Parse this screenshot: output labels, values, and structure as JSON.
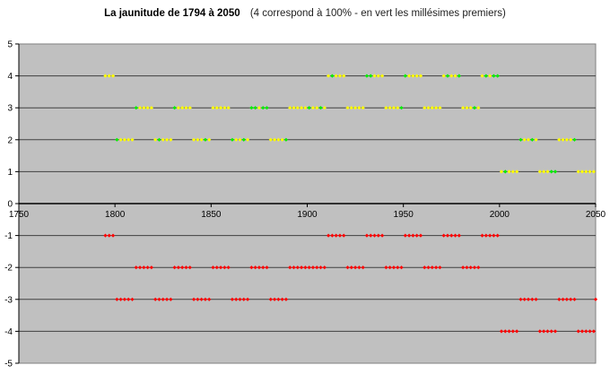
{
  "chart_data": {
    "type": "scatter",
    "title": "La jaunitude de 1794 à 2050",
    "subtitle": "(4 correspond à 100% - en vert les millésimes premiers)",
    "xlim": [
      1750,
      2050
    ],
    "ylim": [
      -5,
      5
    ],
    "x_ticks": [
      1750,
      1800,
      1850,
      1900,
      1950,
      2000,
      2050
    ],
    "y_ticks": [
      5,
      4,
      3,
      2,
      1,
      0,
      -1,
      -2,
      -3,
      -4,
      -5
    ],
    "grid": "horizontal",
    "plot_background": "#c0c0c0",
    "colors": {
      "normal": "#ffff00",
      "prime": "#00ee00",
      "mirror": "#ff0000"
    },
    "year_step": 2,
    "upper_series": [
      {
        "start": 1795,
        "end": 1799,
        "value": 4
      },
      {
        "start": 1801,
        "end": 1809,
        "value": 2
      },
      {
        "start": 1811,
        "end": 1819,
        "value": 3
      },
      {
        "start": 1821,
        "end": 1829,
        "value": 2
      },
      {
        "start": 1831,
        "end": 1839,
        "value": 3
      },
      {
        "start": 1841,
        "end": 1849,
        "value": 2
      },
      {
        "start": 1851,
        "end": 1859,
        "value": 3
      },
      {
        "start": 1861,
        "end": 1869,
        "value": 2
      },
      {
        "start": 1871,
        "end": 1879,
        "value": 3
      },
      {
        "start": 1881,
        "end": 1889,
        "value": 2
      },
      {
        "start": 1891,
        "end": 1899,
        "value": 3
      },
      {
        "start": 1901,
        "end": 1909,
        "value": 3
      },
      {
        "start": 1911,
        "end": 1919,
        "value": 4
      },
      {
        "start": 1921,
        "end": 1929,
        "value": 3
      },
      {
        "start": 1931,
        "end": 1939,
        "value": 4
      },
      {
        "start": 1941,
        "end": 1949,
        "value": 3
      },
      {
        "start": 1951,
        "end": 1959,
        "value": 4
      },
      {
        "start": 1961,
        "end": 1969,
        "value": 3
      },
      {
        "start": 1971,
        "end": 1979,
        "value": 4
      },
      {
        "start": 1981,
        "end": 1989,
        "value": 3
      },
      {
        "start": 1991,
        "end": 1999,
        "value": 4
      },
      {
        "start": 2001,
        "end": 2009,
        "value": 1
      },
      {
        "start": 2011,
        "end": 2019,
        "value": 2
      },
      {
        "start": 2021,
        "end": 2029,
        "value": 1
      },
      {
        "start": 2031,
        "end": 2039,
        "value": 2
      },
      {
        "start": 2041,
        "end": 2049,
        "value": 1
      }
    ],
    "prime_years": [
      1801,
      1811,
      1823,
      1831,
      1847,
      1861,
      1867,
      1871,
      1873,
      1877,
      1879,
      1889,
      1901,
      1907,
      1913,
      1931,
      1933,
      1949,
      1951,
      1973,
      1979,
      1987,
      1993,
      1997,
      1999,
      2003,
      2011,
      2017,
      2027,
      2029,
      2039
    ],
    "lower_series": [
      {
        "start": 1795,
        "end": 1799,
        "value": -1
      },
      {
        "start": 1801,
        "end": 1809,
        "value": -3
      },
      {
        "start": 1811,
        "end": 1819,
        "value": -2
      },
      {
        "start": 1821,
        "end": 1829,
        "value": -3
      },
      {
        "start": 1831,
        "end": 1839,
        "value": -2
      },
      {
        "start": 1841,
        "end": 1849,
        "value": -3
      },
      {
        "start": 1851,
        "end": 1859,
        "value": -2
      },
      {
        "start": 1861,
        "end": 1869,
        "value": -3
      },
      {
        "start": 1871,
        "end": 1879,
        "value": -2
      },
      {
        "start": 1881,
        "end": 1889,
        "value": -3
      },
      {
        "start": 1891,
        "end": 1899,
        "value": -2
      },
      {
        "start": 1901,
        "end": 1909,
        "value": -2
      },
      {
        "start": 1911,
        "end": 1919,
        "value": -1
      },
      {
        "start": 1921,
        "end": 1929,
        "value": -2
      },
      {
        "start": 1931,
        "end": 1939,
        "value": -1
      },
      {
        "start": 1941,
        "end": 1949,
        "value": -2
      },
      {
        "start": 1951,
        "end": 1959,
        "value": -1
      },
      {
        "start": 1961,
        "end": 1969,
        "value": -2
      },
      {
        "start": 1971,
        "end": 1979,
        "value": -1
      },
      {
        "start": 1981,
        "end": 1989,
        "value": -2
      },
      {
        "start": 1991,
        "end": 1999,
        "value": -1
      },
      {
        "start": 2001,
        "end": 2009,
        "value": -4
      },
      {
        "start": 2011,
        "end": 2019,
        "value": -3
      },
      {
        "start": 2021,
        "end": 2029,
        "value": -4
      },
      {
        "start": 2031,
        "end": 2039,
        "value": -3
      },
      {
        "start": 2041,
        "end": 2049,
        "value": -4
      },
      {
        "start": 2050,
        "end": 2050,
        "value": -3
      }
    ]
  }
}
